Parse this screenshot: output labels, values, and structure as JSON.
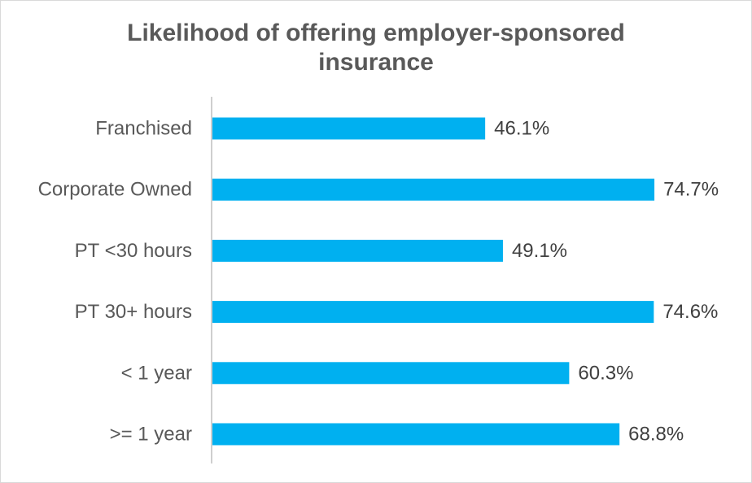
{
  "chart_data": {
    "type": "bar",
    "orientation": "horizontal",
    "title_lines": [
      "Likelihood of offering employer-sponsored",
      "insurance"
    ],
    "title": "Likelihood of offering employer-sponsored insurance",
    "categories": [
      "Franchised",
      "Corporate Owned",
      "PT <30 hours",
      "PT 30+ hours",
      "< 1 year",
      ">= 1 year"
    ],
    "values": [
      46.1,
      74.7,
      49.1,
      74.6,
      60.3,
      68.8
    ],
    "value_labels": [
      "46.1%",
      "74.7%",
      "49.1%",
      "74.6%",
      "60.3%",
      "68.8%"
    ],
    "xlabel": "",
    "ylabel": "",
    "xlim": [
      0,
      80
    ],
    "grid": false,
    "legend": "none",
    "bar_color": "#00b0f0",
    "axis_color": "#bfbfbf"
  }
}
